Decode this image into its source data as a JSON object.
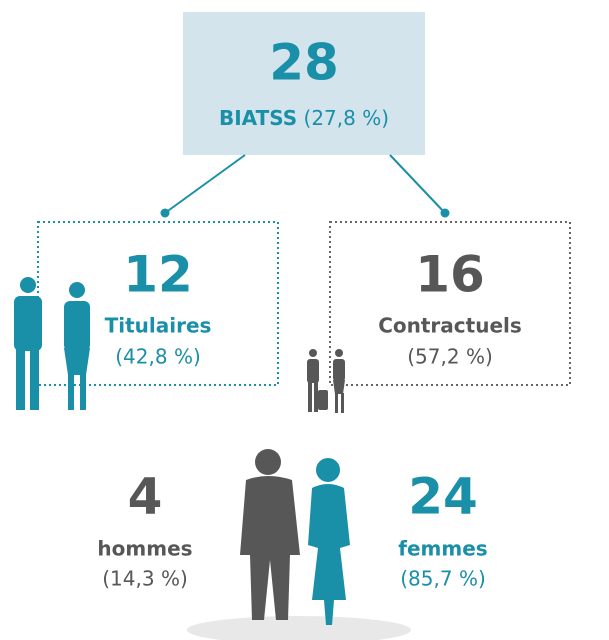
{
  "top": {
    "number": "28",
    "label": "BIATSS",
    "share": "(27,8 %)"
  },
  "left": {
    "number": "12",
    "label": "Titulaires",
    "share": "(42,8 %)"
  },
  "right": {
    "number": "16",
    "label": "Contractuels",
    "share": "(57,2 %)"
  },
  "men": {
    "number": "4",
    "label": "hommes",
    "share": "(14,3 %)"
  },
  "women": {
    "number": "24",
    "label": "femmes",
    "share": "(85,7 %)"
  }
}
